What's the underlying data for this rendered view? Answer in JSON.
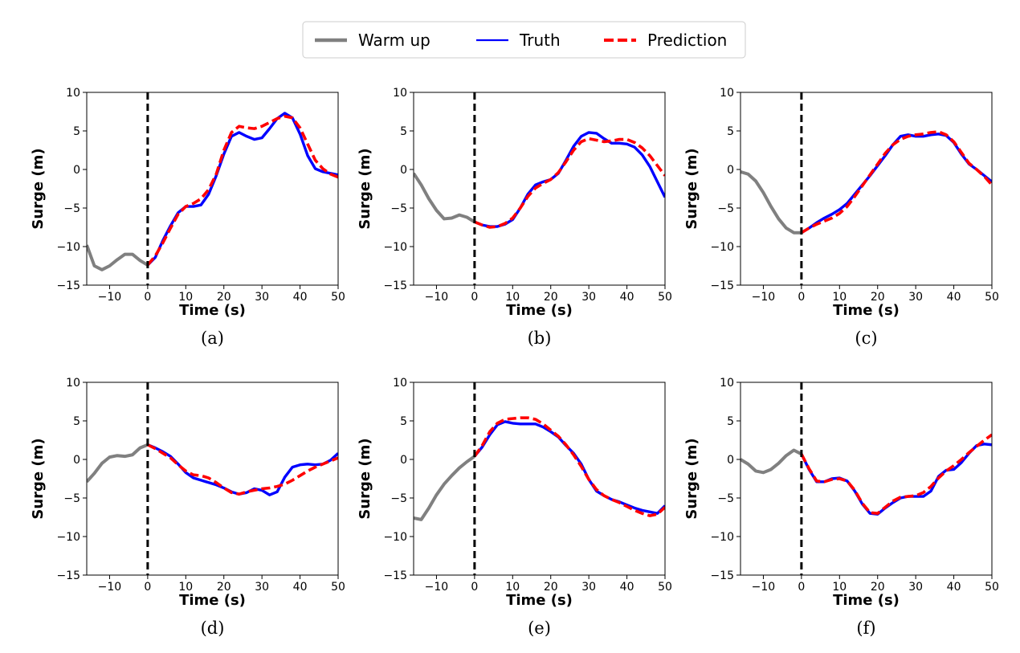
{
  "legend": {
    "entries": [
      {
        "label": "Warm up",
        "color": "#808080",
        "style": "solid-thick"
      },
      {
        "label": "Truth",
        "color": "#0000ff",
        "style": "solid"
      },
      {
        "label": "Prediction",
        "color": "#ff0000",
        "style": "dashed"
      }
    ]
  },
  "chart_data": [
    {
      "type": "line",
      "caption": "(a)",
      "xlabel": "Time (s)",
      "ylabel": "Surge (m)",
      "xlim": [
        -16,
        50
      ],
      "ylim": [
        -15,
        10
      ],
      "xticks": [
        -10,
        0,
        10,
        20,
        30,
        40,
        50
      ],
      "yticks": [
        -15,
        -10,
        -5,
        0,
        5,
        10
      ],
      "vline_x": 0,
      "series": [
        {
          "name": "Warm up",
          "x": [
            -16,
            -14,
            -12,
            -10,
            -8,
            -6,
            -4,
            -2,
            0
          ],
          "y": [
            -9.8,
            -12.5,
            -13.0,
            -12.5,
            -11.7,
            -11.0,
            -11.0,
            -11.8,
            -12.4
          ]
        },
        {
          "name": "Truth",
          "x": [
            0,
            2,
            4,
            6,
            8,
            10,
            12,
            14,
            16,
            18,
            20,
            22,
            24,
            26,
            28,
            30,
            32,
            34,
            36,
            38,
            40,
            42,
            44,
            46,
            48,
            50
          ],
          "y": [
            -12.4,
            -11.4,
            -9.2,
            -7.3,
            -5.6,
            -4.8,
            -4.8,
            -4.6,
            -3.2,
            -0.8,
            2.0,
            4.3,
            4.8,
            4.3,
            3.9,
            4.1,
            5.3,
            6.6,
            7.3,
            6.7,
            4.6,
            1.8,
            0.1,
            -0.3,
            -0.5,
            -0.7
          ]
        },
        {
          "name": "Prediction",
          "x": [
            0,
            2,
            4,
            6,
            8,
            10,
            12,
            14,
            16,
            18,
            20,
            22,
            24,
            26,
            28,
            30,
            32,
            34,
            36,
            38,
            40,
            42,
            44,
            46,
            48,
            50
          ],
          "y": [
            -12.4,
            -11.2,
            -9.5,
            -7.6,
            -5.8,
            -4.8,
            -4.4,
            -3.8,
            -2.6,
            -0.6,
            2.5,
            4.8,
            5.6,
            5.4,
            5.3,
            5.6,
            6.1,
            6.6,
            6.9,
            6.7,
            5.4,
            3.3,
            1.2,
            0.1,
            -0.6,
            -1.0
          ]
        }
      ]
    },
    {
      "type": "line",
      "caption": "(b)",
      "xlabel": "Time (s)",
      "ylabel": "Surge (m)",
      "xlim": [
        -16,
        50
      ],
      "ylim": [
        -15,
        10
      ],
      "xticks": [
        -10,
        0,
        10,
        20,
        30,
        40,
        50
      ],
      "yticks": [
        -15,
        -10,
        -5,
        0,
        5,
        10
      ],
      "vline_x": 0,
      "series": [
        {
          "name": "Warm up",
          "x": [
            -16,
            -14,
            -12,
            -10,
            -8,
            -6,
            -4,
            -2,
            0
          ],
          "y": [
            -0.5,
            -2.0,
            -3.8,
            -5.3,
            -6.4,
            -6.3,
            -5.9,
            -6.2,
            -6.8
          ]
        },
        {
          "name": "Truth",
          "x": [
            0,
            2,
            4,
            6,
            8,
            10,
            12,
            14,
            16,
            18,
            20,
            22,
            24,
            26,
            28,
            30,
            32,
            34,
            36,
            38,
            40,
            42,
            44,
            46,
            48,
            50
          ],
          "y": [
            -6.8,
            -7.2,
            -7.4,
            -7.4,
            -7.1,
            -6.5,
            -5.0,
            -3.2,
            -2.0,
            -1.6,
            -1.3,
            -0.5,
            1.2,
            3.0,
            4.3,
            4.8,
            4.7,
            4.0,
            3.4,
            3.4,
            3.3,
            2.9,
            1.9,
            0.4,
            -1.6,
            -3.6
          ]
        },
        {
          "name": "Prediction",
          "x": [
            0,
            2,
            4,
            6,
            8,
            10,
            12,
            14,
            16,
            18,
            20,
            22,
            24,
            26,
            28,
            30,
            32,
            34,
            36,
            38,
            40,
            42,
            44,
            46,
            48,
            50
          ],
          "y": [
            -6.8,
            -7.2,
            -7.5,
            -7.4,
            -7.0,
            -6.3,
            -5.0,
            -3.5,
            -2.4,
            -1.8,
            -1.3,
            -0.4,
            1.0,
            2.5,
            3.6,
            4.0,
            3.8,
            3.6,
            3.7,
            3.9,
            3.9,
            3.5,
            2.8,
            1.8,
            0.5,
            -0.8
          ]
        }
      ]
    },
    {
      "type": "line",
      "caption": "(c)",
      "xlabel": "Time (s)",
      "ylabel": "Surge (m)",
      "xlim": [
        -16,
        50
      ],
      "ylim": [
        -15,
        10
      ],
      "xticks": [
        -10,
        0,
        10,
        20,
        30,
        40,
        50
      ],
      "yticks": [
        -15,
        -10,
        -5,
        0,
        5,
        10
      ],
      "vline_x": 0,
      "series": [
        {
          "name": "Warm up",
          "x": [
            -16,
            -14,
            -12,
            -10,
            -8,
            -6,
            -4,
            -2,
            0
          ],
          "y": [
            -0.3,
            -0.6,
            -1.5,
            -3.0,
            -4.8,
            -6.4,
            -7.6,
            -8.2,
            -8.2
          ]
        },
        {
          "name": "Truth",
          "x": [
            0,
            2,
            4,
            6,
            8,
            10,
            12,
            14,
            16,
            18,
            20,
            22,
            24,
            26,
            28,
            30,
            32,
            34,
            36,
            38,
            40,
            42,
            44,
            46,
            48,
            50
          ],
          "y": [
            -8.2,
            -7.6,
            -6.9,
            -6.3,
            -5.8,
            -5.2,
            -4.4,
            -3.2,
            -2.0,
            -0.8,
            0.5,
            1.8,
            3.2,
            4.3,
            4.5,
            4.3,
            4.3,
            4.5,
            4.6,
            4.4,
            3.5,
            2.0,
            0.7,
            0.0,
            -0.8,
            -1.6
          ]
        },
        {
          "name": "Prediction",
          "x": [
            0,
            2,
            4,
            6,
            8,
            10,
            12,
            14,
            16,
            18,
            20,
            22,
            24,
            26,
            28,
            30,
            32,
            34,
            36,
            38,
            40,
            42,
            44,
            46,
            48,
            50
          ],
          "y": [
            -8.2,
            -7.6,
            -7.1,
            -6.7,
            -6.3,
            -5.7,
            -4.8,
            -3.5,
            -2.1,
            -0.7,
            0.7,
            2.1,
            3.2,
            3.9,
            4.3,
            4.5,
            4.6,
            4.8,
            4.9,
            4.5,
            3.6,
            2.2,
            0.8,
            0.0,
            -0.9,
            -2.0
          ]
        }
      ]
    },
    {
      "type": "line",
      "caption": "(d)",
      "xlabel": "Time (s)",
      "ylabel": "Surge (m)",
      "xlim": [
        -16,
        50
      ],
      "ylim": [
        -15,
        10
      ],
      "xticks": [
        -10,
        0,
        10,
        20,
        30,
        40,
        50
      ],
      "yticks": [
        -15,
        -10,
        -5,
        0,
        5,
        10
      ],
      "vline_x": 0,
      "series": [
        {
          "name": "Warm up",
          "x": [
            -16,
            -14,
            -12,
            -10,
            -8,
            -6,
            -4,
            -2,
            0
          ],
          "y": [
            -2.9,
            -1.8,
            -0.5,
            0.3,
            0.5,
            0.4,
            0.6,
            1.5,
            1.9
          ]
        },
        {
          "name": "Truth",
          "x": [
            0,
            2,
            4,
            6,
            8,
            10,
            12,
            14,
            16,
            18,
            20,
            22,
            24,
            26,
            28,
            30,
            32,
            34,
            36,
            38,
            40,
            42,
            44,
            46,
            48,
            50
          ],
          "y": [
            1.9,
            1.5,
            1.0,
            0.4,
            -0.6,
            -1.7,
            -2.4,
            -2.7,
            -3.0,
            -3.3,
            -3.7,
            -4.2,
            -4.5,
            -4.3,
            -3.8,
            -4.0,
            -4.6,
            -4.2,
            -2.3,
            -1.0,
            -0.7,
            -0.6,
            -0.7,
            -0.6,
            -0.1,
            0.8
          ]
        },
        {
          "name": "Prediction",
          "x": [
            0,
            2,
            4,
            6,
            8,
            10,
            12,
            14,
            16,
            18,
            20,
            22,
            24,
            26,
            28,
            30,
            32,
            34,
            36,
            38,
            40,
            42,
            44,
            46,
            48,
            50
          ],
          "y": [
            1.9,
            1.4,
            0.8,
            0.2,
            -0.7,
            -1.5,
            -2.0,
            -2.1,
            -2.4,
            -3.0,
            -3.7,
            -4.3,
            -4.5,
            -4.2,
            -4.0,
            -3.8,
            -3.7,
            -3.5,
            -3.2,
            -2.7,
            -2.1,
            -1.5,
            -1.0,
            -0.6,
            -0.2,
            0.2
          ]
        }
      ]
    },
    {
      "type": "line",
      "caption": "(e)",
      "xlabel": "Time (s)",
      "ylabel": "Surge (m)",
      "xlim": [
        -16,
        50
      ],
      "ylim": [
        -15,
        10
      ],
      "xticks": [
        -10,
        0,
        10,
        20,
        30,
        40,
        50
      ],
      "yticks": [
        -15,
        -10,
        -5,
        0,
        5,
        10
      ],
      "vline_x": 0,
      "series": [
        {
          "name": "Warm up",
          "x": [
            -16,
            -14,
            -12,
            -10,
            -8,
            -6,
            -4,
            -2,
            0
          ],
          "y": [
            -7.6,
            -7.8,
            -6.3,
            -4.6,
            -3.2,
            -2.1,
            -1.1,
            -0.3,
            0.4
          ]
        },
        {
          "name": "Truth",
          "x": [
            0,
            2,
            4,
            6,
            8,
            10,
            12,
            14,
            16,
            18,
            20,
            22,
            24,
            26,
            28,
            30,
            32,
            34,
            36,
            38,
            40,
            42,
            44,
            46,
            48,
            50
          ],
          "y": [
            0.4,
            1.6,
            3.2,
            4.5,
            4.9,
            4.7,
            4.6,
            4.6,
            4.6,
            4.2,
            3.6,
            2.9,
            1.8,
            0.8,
            -0.6,
            -2.6,
            -4.1,
            -4.7,
            -5.2,
            -5.5,
            -5.9,
            -6.3,
            -6.6,
            -6.8,
            -7.0,
            -6.0
          ]
        },
        {
          "name": "Prediction",
          "x": [
            0,
            2,
            4,
            6,
            8,
            10,
            12,
            14,
            16,
            18,
            20,
            22,
            24,
            26,
            28,
            30,
            32,
            34,
            36,
            38,
            40,
            42,
            44,
            46,
            48,
            50
          ],
          "y": [
            0.4,
            1.8,
            3.6,
            4.7,
            5.2,
            5.3,
            5.4,
            5.4,
            5.2,
            4.6,
            3.8,
            3.0,
            1.9,
            0.6,
            -0.9,
            -2.6,
            -3.9,
            -4.7,
            -5.2,
            -5.6,
            -6.1,
            -6.6,
            -7.0,
            -7.3,
            -7.1,
            -6.2
          ]
        }
      ]
    },
    {
      "type": "line",
      "caption": "(f)",
      "xlabel": "Time (s)",
      "ylabel": "Surge (m)",
      "xlim": [
        -16,
        50
      ],
      "ylim": [
        -15,
        10
      ],
      "xticks": [
        -10,
        0,
        10,
        20,
        30,
        40,
        50
      ],
      "yticks": [
        -15,
        -10,
        -5,
        0,
        5,
        10
      ],
      "vline_x": 0,
      "series": [
        {
          "name": "Warm up",
          "x": [
            -16,
            -14,
            -12,
            -10,
            -8,
            -6,
            -4,
            -2,
            0
          ],
          "y": [
            0.0,
            -0.6,
            -1.5,
            -1.7,
            -1.3,
            -0.5,
            0.5,
            1.2,
            0.7
          ]
        },
        {
          "name": "Truth",
          "x": [
            0,
            2,
            4,
            6,
            8,
            10,
            12,
            14,
            16,
            18,
            20,
            22,
            24,
            26,
            28,
            30,
            32,
            34,
            36,
            38,
            40,
            42,
            44,
            46,
            48,
            50
          ],
          "y": [
            0.7,
            -1.3,
            -2.9,
            -2.9,
            -2.5,
            -2.4,
            -2.8,
            -4.1,
            -5.8,
            -7.0,
            -7.1,
            -6.3,
            -5.6,
            -5.0,
            -4.8,
            -4.8,
            -4.8,
            -4.1,
            -2.2,
            -1.4,
            -1.3,
            -0.4,
            0.8,
            1.8,
            2.0,
            1.9
          ]
        },
        {
          "name": "Prediction",
          "x": [
            0,
            2,
            4,
            6,
            8,
            10,
            12,
            14,
            16,
            18,
            20,
            22,
            24,
            26,
            28,
            30,
            32,
            34,
            36,
            38,
            40,
            42,
            44,
            46,
            48,
            50
          ],
          "y": [
            0.7,
            -1.2,
            -2.8,
            -2.9,
            -2.6,
            -2.5,
            -2.8,
            -4.0,
            -5.7,
            -6.9,
            -7.0,
            -6.2,
            -5.4,
            -4.9,
            -4.8,
            -4.7,
            -4.3,
            -3.5,
            -2.4,
            -1.5,
            -0.8,
            0.0,
            0.9,
            1.7,
            2.5,
            3.2
          ]
        }
      ]
    }
  ]
}
